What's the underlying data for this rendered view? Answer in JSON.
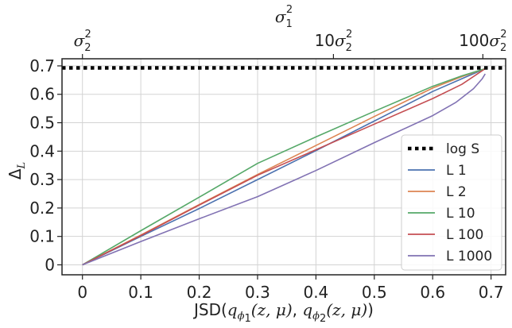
{
  "chart_data": {
    "type": "line",
    "xlabel": "JSD(q_{φ1}(z, μ), q_{φ2}(z, μ))",
    "xlabel_parts": {
      "prefix": "JSD(",
      "q": "q",
      "phi": "ϕ",
      "sub1": "1",
      "sub2": "2",
      "args": "(z, μ)",
      "sep": ", ",
      "suffix": ")"
    },
    "ylabel": "Δ_L",
    "ylabel_parts": {
      "main": "Δ",
      "sub": "L"
    },
    "xlim": [
      -0.035,
      0.725
    ],
    "ylim": [
      -0.035,
      0.725
    ],
    "xticks": [
      0,
      0.1,
      0.2,
      0.3,
      0.4,
      0.5,
      0.6,
      0.7
    ],
    "xtick_labels": [
      "0",
      "0.1",
      "0.2",
      "0.3",
      "0.4",
      "0.5",
      "0.6",
      "0.7"
    ],
    "yticks": [
      0,
      0.1,
      0.2,
      0.3,
      0.4,
      0.5,
      0.6,
      0.7
    ],
    "ytick_labels": [
      "0",
      "0.1",
      "0.2",
      "0.3",
      "0.4",
      "0.5",
      "0.6",
      "0.7"
    ],
    "grid": true,
    "legend_location": "lower-right",
    "top_axis": {
      "title": "σ_1^2",
      "title_parts": {
        "main": "σ",
        "sub": "1",
        "sup": "2"
      },
      "ticks": [
        {
          "x": 0.0,
          "coef": "",
          "main": "σ",
          "sub": "2",
          "sup": "2"
        },
        {
          "x": 0.43,
          "coef": "10",
          "main": "σ",
          "sub": "2",
          "sup": "2"
        },
        {
          "x": 0.686,
          "coef": "100",
          "main": "σ",
          "sub": "2",
          "sup": "2"
        }
      ]
    },
    "reference_line": {
      "name": "log S",
      "y": 0.693,
      "color": "#000000"
    },
    "series": [
      {
        "name": "L 1",
        "color": "#4c72b0",
        "x": [
          0,
          0.1,
          0.2,
          0.3,
          0.4,
          0.5,
          0.6,
          0.65,
          0.69
        ],
        "y": [
          0,
          0.1,
          0.198,
          0.3,
          0.402,
          0.506,
          0.61,
          0.655,
          0.69
        ]
      },
      {
        "name": "L 2",
        "color": "#dd8452",
        "x": [
          0,
          0.1,
          0.2,
          0.3,
          0.4,
          0.5,
          0.6,
          0.65,
          0.69
        ],
        "y": [
          0,
          0.105,
          0.212,
          0.318,
          0.42,
          0.522,
          0.622,
          0.662,
          0.69
        ]
      },
      {
        "name": "L 10",
        "color": "#55a868",
        "x": [
          0,
          0.1,
          0.2,
          0.3,
          0.4,
          0.5,
          0.6,
          0.65,
          0.69
        ],
        "y": [
          0,
          0.12,
          0.238,
          0.357,
          0.45,
          0.54,
          0.628,
          0.665,
          0.69
        ]
      },
      {
        "name": "L 100",
        "color": "#c44e52",
        "x": [
          0,
          0.1,
          0.2,
          0.3,
          0.4,
          0.5,
          0.6,
          0.65,
          0.69
        ],
        "y": [
          0,
          0.103,
          0.21,
          0.315,
          0.405,
          0.495,
          0.585,
          0.635,
          0.69
        ]
      },
      {
        "name": "L 1000",
        "color": "#8172b3",
        "x": [
          0,
          0.1,
          0.2,
          0.3,
          0.4,
          0.5,
          0.6,
          0.64,
          0.67,
          0.685,
          0.69
        ],
        "y": [
          0,
          0.082,
          0.162,
          0.24,
          0.332,
          0.43,
          0.525,
          0.572,
          0.62,
          0.655,
          0.672
        ]
      }
    ]
  }
}
